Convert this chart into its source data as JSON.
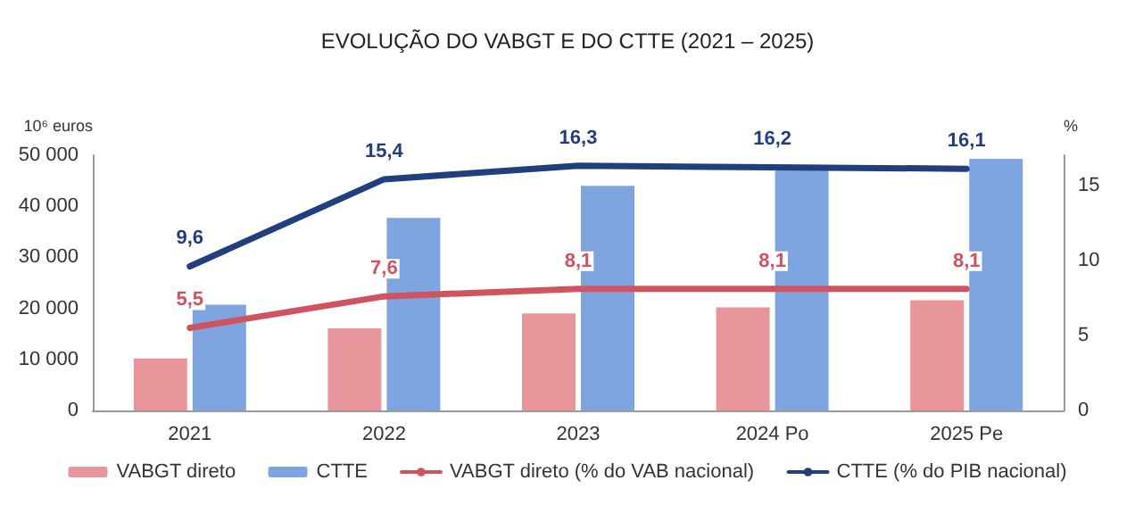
{
  "chart_data": {
    "type": "bar",
    "title": "EVOLUÇÃO DO VABGT E DO CTTE (2021 – 2025)",
    "ylabel": "10⁶ euros",
    "y2label": "%",
    "categories": [
      "2021",
      "2022",
      "2023",
      "2024 Po",
      "2025 Pe"
    ],
    "series": [
      {
        "name": "VABGT direto",
        "color": "#e8959b",
        "values": [
          10200,
          16100,
          19000,
          20200,
          21600
        ]
      },
      {
        "name": "CTTE",
        "color": "#7fa5e0",
        "values": [
          20700,
          37700,
          44000,
          47900,
          49300
        ]
      },
      {
        "name": "VABGT direto (% do VAB nacional)",
        "type": "line",
        "axis": "y2",
        "color": "#cf5460",
        "values": [
          5.5,
          7.6,
          8.1,
          8.1,
          8.1
        ],
        "value_labels": [
          "5,5",
          "7,6",
          "8,1",
          "8,1",
          "8,1"
        ]
      },
      {
        "name": "CTTE (% do PIB nacional)",
        "type": "line",
        "axis": "y2",
        "color": "#213f7c",
        "values": [
          9.6,
          15.4,
          16.3,
          16.2,
          16.1
        ],
        "value_labels": [
          "9,6",
          "15,4",
          "16,3",
          "16,2",
          "16,1"
        ]
      }
    ],
    "ylim": [
      0,
      50000
    ],
    "yticks": [
      {
        "value": 0,
        "label": "0"
      },
      {
        "value": 10000,
        "label": "10 000"
      },
      {
        "value": 20000,
        "label": "20 000"
      },
      {
        "value": 30000,
        "label": "30 000"
      },
      {
        "value": 40000,
        "label": "40 000"
      },
      {
        "value": 50000,
        "label": "50 000"
      }
    ],
    "y2lim": [
      0,
      17
    ],
    "y2ticks": [
      0,
      5,
      10,
      15
    ],
    "grid": false,
    "legend": "bottom",
    "marker": "none",
    "line_style": "solid"
  }
}
